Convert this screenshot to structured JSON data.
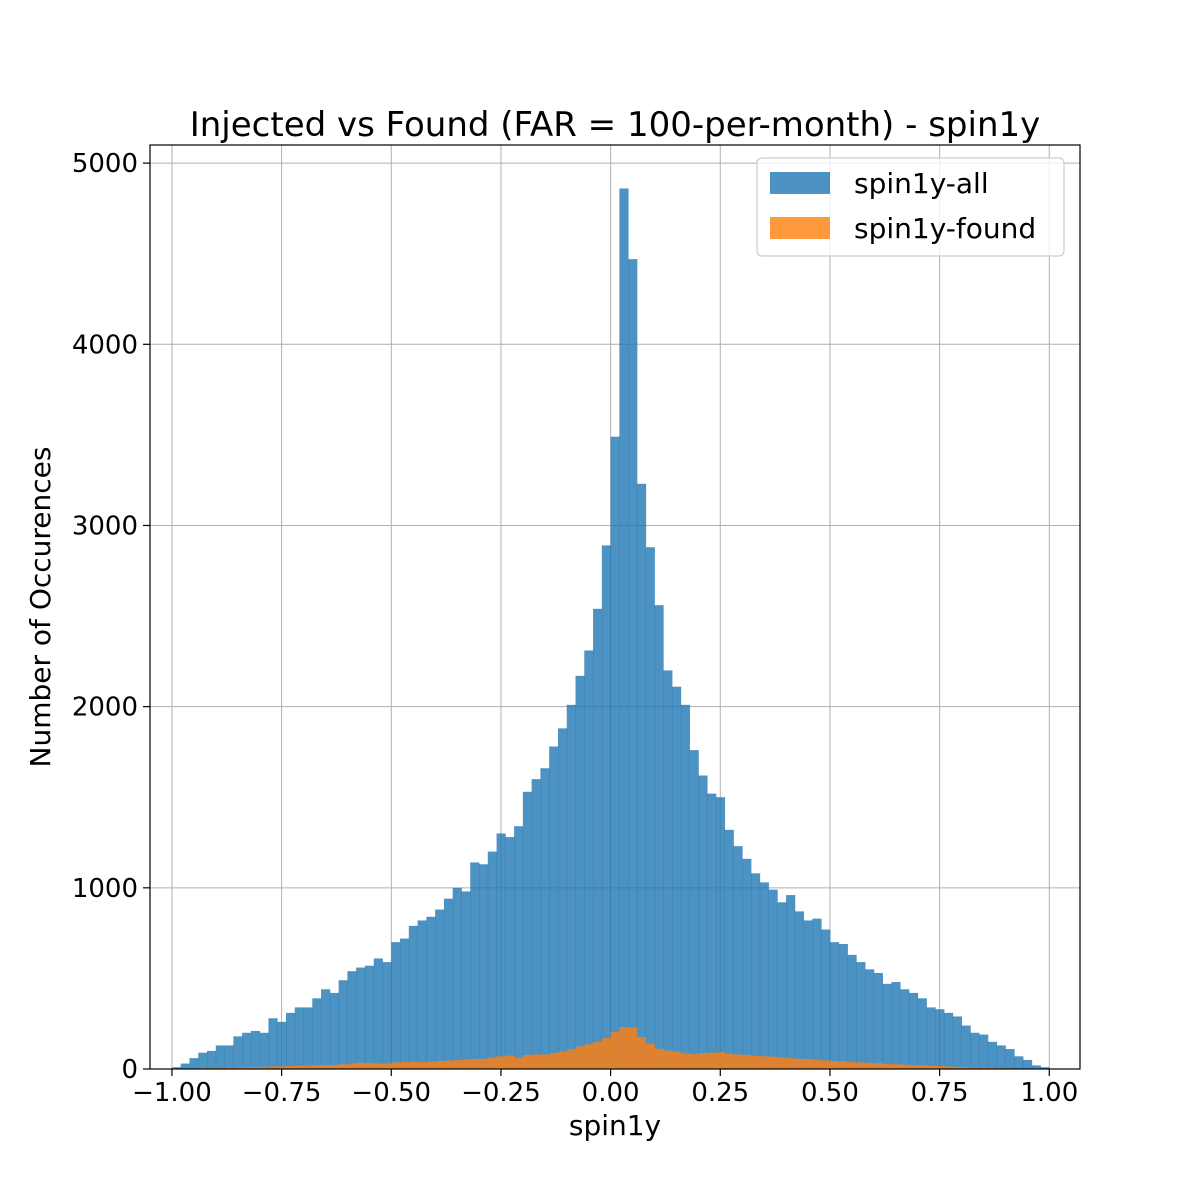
{
  "chart_data": {
    "type": "bar",
    "title": "Injected vs Found (FAR = 100-per-month) - spin1y",
    "xlabel": "spin1y",
    "ylabel": "Number of Occurences",
    "xlim": [
      -1.05,
      1.07
    ],
    "ylim": [
      0,
      5100
    ],
    "xticks": [
      -1.0,
      -0.75,
      -0.5,
      -0.25,
      0.0,
      0.25,
      0.5,
      0.75,
      1.0
    ],
    "xtick_labels": [
      "−1.00",
      "−0.75",
      "−0.50",
      "−0.25",
      "0.00",
      "0.25",
      "0.50",
      "0.75",
      "1.00"
    ],
    "yticks": [
      0,
      1000,
      2000,
      3000,
      4000,
      5000
    ],
    "ytick_labels": [
      "0",
      "1000",
      "2000",
      "3000",
      "4000",
      "5000"
    ],
    "grid": true,
    "legend_position": "top-right",
    "bin_start": -0.99,
    "bin_width": 0.02,
    "series": [
      {
        "name": "spin1y-all",
        "color": "#1f77b4",
        "opacity": 0.8,
        "values": [
          10,
          30,
          60,
          90,
          100,
          130,
          130,
          180,
          200,
          210,
          200,
          280,
          260,
          310,
          340,
          340,
          390,
          440,
          420,
          490,
          540,
          560,
          570,
          610,
          590,
          700,
          720,
          790,
          820,
          840,
          880,
          940,
          1000,
          980,
          1140,
          1130,
          1200,
          1300,
          1280,
          1340,
          1530,
          1600,
          1660,
          1780,
          1880,
          2010,
          2170,
          2310,
          2540,
          2890,
          3490,
          4860,
          4470,
          3230,
          2880,
          2560,
          2200,
          2110,
          2010,
          1760,
          1620,
          1520,
          1500,
          1320,
          1230,
          1160,
          1080,
          1030,
          990,
          920,
          960,
          870,
          820,
          830,
          770,
          700,
          690,
          630,
          590,
          550,
          530,
          470,
          480,
          440,
          420,
          390,
          340,
          330,
          310,
          290,
          240,
          200,
          190,
          150,
          130,
          110,
          70,
          50,
          20,
          10
        ]
      },
      {
        "name": "spin1y-found",
        "color": "#ff7f0e",
        "opacity": 0.8,
        "values": [
          0,
          0,
          2,
          4,
          4,
          6,
          6,
          8,
          10,
          10,
          10,
          14,
          14,
          16,
          18,
          18,
          20,
          22,
          22,
          26,
          30,
          34,
          34,
          30,
          30,
          36,
          38,
          40,
          38,
          40,
          44,
          46,
          50,
          52,
          56,
          56,
          62,
          70,
          74,
          62,
          78,
          80,
          80,
          88,
          96,
          110,
          124,
          136,
          150,
          170,
          204,
          232,
          230,
          176,
          140,
          112,
          102,
          96,
          86,
          82,
          88,
          90,
          92,
          84,
          80,
          78,
          72,
          70,
          68,
          64,
          60,
          56,
          56,
          52,
          48,
          44,
          42,
          38,
          36,
          34,
          32,
          28,
          26,
          24,
          22,
          20,
          18,
          16,
          14,
          12,
          10,
          8,
          6,
          6,
          4,
          4,
          2,
          2,
          0,
          0
        ]
      }
    ]
  }
}
